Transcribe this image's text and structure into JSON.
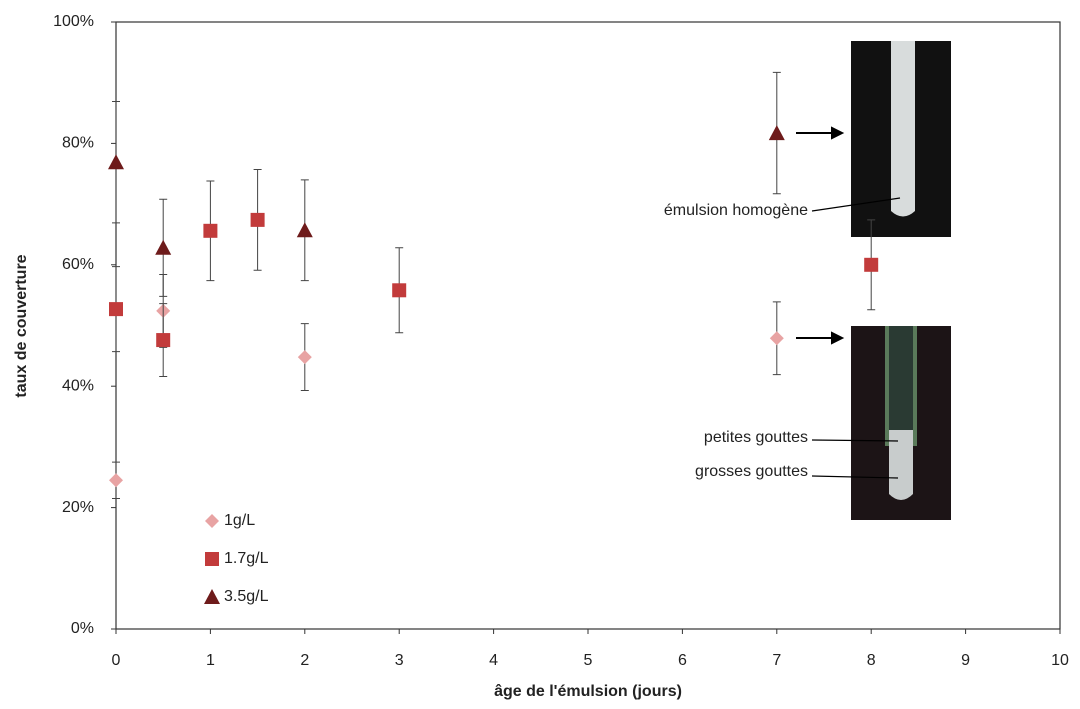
{
  "chart_data": {
    "type": "scatter",
    "xlabel": "âge de l'émulsion (jours)",
    "ylabel": "taux de couverture",
    "xlim": [
      0,
      10
    ],
    "xticks": [
      0,
      1,
      2,
      3,
      4,
      5,
      6,
      7,
      8,
      9,
      10
    ],
    "ylim": [
      0,
      100
    ],
    "yticks": [
      {
        "value": 0,
        "label": "0%"
      },
      {
        "value": 20,
        "label": "20%"
      },
      {
        "value": 40,
        "label": "40%"
      },
      {
        "value": 60,
        "label": "60%"
      },
      {
        "value": 80,
        "label": "80%"
      },
      {
        "value": 100,
        "label": "100%"
      }
    ],
    "grid": false,
    "legend": "lower left",
    "series": [
      {
        "name": "1g/L",
        "color": "#e8a3a3",
        "marker": "diamond",
        "x": [
          0,
          0.5,
          2,
          7
        ],
        "values": [
          24.5,
          52.4,
          44.8,
          47.9
        ],
        "errors": [
          3,
          6,
          5.5,
          6
        ]
      },
      {
        "name": "1.7g/L",
        "color": "#c23b3b",
        "marker": "square",
        "x": [
          0,
          0.5,
          1,
          1.5,
          3,
          8
        ],
        "values": [
          52.7,
          47.6,
          65.6,
          67.4,
          55.8,
          60
        ],
        "errors": [
          7,
          6,
          8.2,
          8.3,
          7,
          7.4
        ]
      },
      {
        "name": "3.5g/L",
        "color": "#6e1b1b",
        "marker": "triangle",
        "x": [
          0,
          0.5,
          2,
          7
        ],
        "values": [
          76.9,
          62.8,
          65.7,
          81.7
        ],
        "errors": [
          10,
          8,
          8.3,
          10
        ]
      }
    ],
    "annotations": [
      "émulsion homogène",
      "petites gouttes",
      "grosses gouttes"
    ]
  }
}
